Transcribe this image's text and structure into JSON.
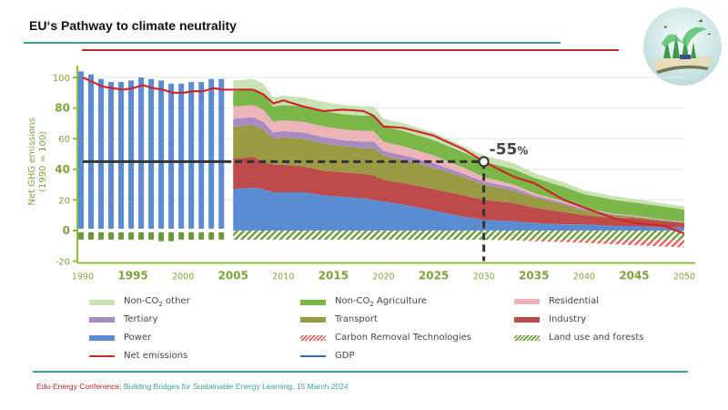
{
  "slide": {
    "title": "EU‘s Pathway to climate neutrality",
    "footer_org": "Edu-Energy Conference:",
    "footer_rest": " Building Bridges for Sustainable Energy Learning, 15 March 2024",
    "logo_icon": "open-book-with-green-city-icon"
  },
  "colors": {
    "non_co2_other": "#c9e2b3",
    "non_co2_agriculture": "#7ab648",
    "residential": "#ecb3b8",
    "tertiary": "#a98bc4",
    "transport": "#9a9a45",
    "industry": "#bd4b4b",
    "power": "#5b8bd0",
    "net_emissions": "#d0262b",
    "gdp": "#3c6aa6",
    "cdr": "#e0605e",
    "land_use": "#6b9a3a",
    "axis": "#8dbb3f",
    "tick_text": "#7da23c",
    "target": "#333333",
    "teal": "#3a9e98",
    "red": "#c0272d"
  },
  "chart_data": {
    "type": "area",
    "title": "",
    "ylabel": "Net GHG emissions (1990 = 100)",
    "xlabel": "",
    "ylim": [
      -20,
      105
    ],
    "xlim": [
      1990,
      2050
    ],
    "yticks": [
      {
        "value": 100,
        "label": "100",
        "bold": false
      },
      {
        "value": 80,
        "label": "80",
        "bold": true
      },
      {
        "value": 60,
        "label": "60",
        "bold": false
      },
      {
        "value": 40,
        "label": "40",
        "bold": true
      },
      {
        "value": 20,
        "label": "20",
        "bold": false
      },
      {
        "value": 0,
        "label": "0",
        "bold": true
      },
      {
        "value": -20,
        "label": "-20",
        "bold": false
      }
    ],
    "xticks": [
      {
        "value": 1990,
        "label": "1990",
        "bold": false
      },
      {
        "value": 1995,
        "label": "1995",
        "bold": true
      },
      {
        "value": 2000,
        "label": "2000",
        "bold": false
      },
      {
        "value": 2005,
        "label": "2005",
        "bold": true
      },
      {
        "value": 2010,
        "label": "2010",
        "bold": false
      },
      {
        "value": 2015,
        "label": "2015",
        "bold": true
      },
      {
        "value": 2020,
        "label": "2020",
        "bold": false
      },
      {
        "value": 2025,
        "label": "2025",
        "bold": true
      },
      {
        "value": 2030,
        "label": "2030",
        "bold": false
      },
      {
        "value": 2035,
        "label": "2035",
        "bold": true
      },
      {
        "value": 2040,
        "label": "2040",
        "bold": false
      },
      {
        "value": 2045,
        "label": "2045",
        "bold": true
      },
      {
        "value": 2050,
        "label": "2050",
        "bold": false
      }
    ],
    "grid": true,
    "historic_bars": {
      "name": "Total emissions 1990-2004",
      "x": [
        1990,
        1991,
        1992,
        1993,
        1994,
        1995,
        1996,
        1997,
        1998,
        1999,
        2000,
        2001,
        2002,
        2003,
        2004
      ],
      "values": [
        104,
        102,
        99,
        97,
        97,
        98,
        100,
        99,
        98,
        96,
        96,
        97,
        97,
        99,
        99
      ],
      "negative_values": [
        -6,
        -6,
        -6,
        -6,
        -6,
        -6,
        -6,
        -6,
        -7,
        -7,
        -6,
        -6,
        -6,
        -6,
        -6
      ]
    },
    "x": [
      2005,
      2007,
      2008,
      2009,
      2010,
      2012,
      2014,
      2016,
      2018,
      2019,
      2020,
      2022,
      2025,
      2028,
      2030,
      2033,
      2035,
      2038,
      2040,
      2043,
      2045,
      2048,
      2050
    ],
    "series": [
      {
        "key": "power",
        "name": "Power",
        "values": [
          27,
          28,
          27,
          25,
          25,
          25,
          23,
          22,
          21,
          20,
          19,
          17,
          13,
          9,
          7,
          6,
          5,
          4,
          4,
          3,
          3,
          2,
          2
        ]
      },
      {
        "key": "industry",
        "name": "Industry",
        "values": [
          20,
          20,
          18,
          18,
          18,
          17,
          16,
          16,
          16,
          16,
          14,
          14,
          14,
          14,
          13,
          12,
          10,
          8,
          6,
          5,
          5,
          4,
          3
        ]
      },
      {
        "key": "transport",
        "name": "Transport",
        "values": [
          21,
          21,
          21,
          17,
          18,
          18,
          18,
          17,
          17,
          18,
          16,
          15,
          14,
          12,
          10,
          8,
          7,
          5,
          3,
          2,
          1,
          0.5,
          0.3
        ]
      },
      {
        "key": "tertiary",
        "name": "Tertiary",
        "values": [
          5,
          5,
          5,
          4,
          4,
          4,
          4,
          4,
          4,
          4,
          3,
          3,
          3,
          2,
          2,
          2,
          1,
          1,
          1,
          0.5,
          0.4,
          0.3,
          0.2
        ]
      },
      {
        "key": "residential",
        "name": "Residential",
        "values": [
          8,
          8,
          8,
          7,
          7,
          7,
          7,
          7,
          7,
          7,
          6,
          6,
          5,
          4,
          3,
          2,
          1.5,
          1,
          0.7,
          0.5,
          0.4,
          0.3,
          0.3
        ]
      },
      {
        "key": "non_co2_agriculture",
        "name": "Non-CO2 Agriculture",
        "values": [
          10,
          10,
          10,
          10,
          10,
          10,
          10,
          10,
          10,
          10,
          10,
          10,
          10,
          10,
          10,
          10,
          10,
          9.5,
          9,
          9,
          8.5,
          8.5,
          8
        ]
      },
      {
        "key": "non_co2_other",
        "name": "Non-CO2 other",
        "values": [
          7,
          7,
          7,
          6,
          6,
          6,
          6,
          6,
          6,
          6,
          5,
          5,
          5,
          4,
          4,
          4,
          3,
          3,
          2.5,
          2.5,
          2.3,
          2,
          2
        ]
      }
    ],
    "negative_series": [
      {
        "key": "land_use",
        "name": "Land use and forests",
        "values": [
          -6,
          -6,
          -6,
          -6,
          -6,
          -6,
          -6,
          -6,
          -6,
          -6,
          -6,
          -6,
          -6,
          -6,
          -6,
          -6,
          -6,
          -6,
          -6,
          -6,
          -6,
          -6,
          -6
        ]
      },
      {
        "key": "cdr",
        "name": "Carbon Removal Technologies",
        "values": [
          0,
          0,
          0,
          0,
          0,
          0,
          0,
          0,
          0,
          0,
          0,
          0,
          0,
          0,
          0,
          -0.5,
          -1,
          -1.5,
          -2,
          -3,
          -3.5,
          -4.5,
          -5
        ]
      }
    ],
    "net_emissions": {
      "name": "Net emissions",
      "x": [
        1990,
        1991,
        1992,
        1993,
        1994,
        1995,
        1996,
        1997,
        1998,
        1999,
        2000,
        2001,
        2002,
        2003,
        2004,
        2005,
        2007,
        2008,
        2009,
        2010,
        2012,
        2014,
        2016,
        2018,
        2019,
        2020,
        2022,
        2025,
        2028,
        2030,
        2033,
        2035,
        2038,
        2040,
        2043,
        2045,
        2048,
        2050
      ],
      "values": [
        100,
        97,
        94,
        93,
        92,
        93,
        95,
        93,
        92,
        90,
        90,
        91,
        91,
        93,
        92,
        92,
        92,
        89,
        83,
        85,
        81,
        78,
        79,
        78,
        75,
        68,
        67,
        62,
        53,
        45,
        35,
        31,
        20,
        15,
        8,
        5,
        3,
        -2
      ]
    },
    "target": {
      "year": 2030,
      "value": 45,
      "label": "-55%"
    },
    "legend_position": "bottom",
    "legend": [
      {
        "key": "non_co2_other",
        "label_pre": "Non-CO",
        "label_sub": "2",
        "label_post": " other",
        "kind": "swatch"
      },
      {
        "key": "non_co2_agriculture",
        "label_pre": "Non-CO",
        "label_sub": "2",
        "label_post": " Agriculture",
        "kind": "swatch"
      },
      {
        "key": "residential",
        "label_pre": "Residential",
        "label_sub": "",
        "label_post": "",
        "kind": "swatch"
      },
      {
        "key": "tertiary",
        "label_pre": "Tertiary",
        "label_sub": "",
        "label_post": "",
        "kind": "swatch"
      },
      {
        "key": "transport",
        "label_pre": "Transport",
        "label_sub": "",
        "label_post": "",
        "kind": "swatch"
      },
      {
        "key": "industry",
        "label_pre": "Industry",
        "label_sub": "",
        "label_post": "",
        "kind": "swatch"
      },
      {
        "key": "power",
        "label_pre": "Power",
        "label_sub": "",
        "label_post": "",
        "kind": "swatch"
      },
      {
        "key": "cdr",
        "label_pre": "Carbon Removal Technologies",
        "label_sub": "",
        "label_post": "",
        "kind": "hatch-red"
      },
      {
        "key": "land_use",
        "label_pre": "Land use and forests",
        "label_sub": "",
        "label_post": "",
        "kind": "hatch-green"
      },
      {
        "key": "net_emissions",
        "label_pre": "Net emissions",
        "label_sub": "",
        "label_post": "",
        "kind": "line"
      },
      {
        "key": "gdp",
        "label_pre": "GDP",
        "label_sub": "",
        "label_post": "",
        "kind": "line"
      }
    ]
  }
}
